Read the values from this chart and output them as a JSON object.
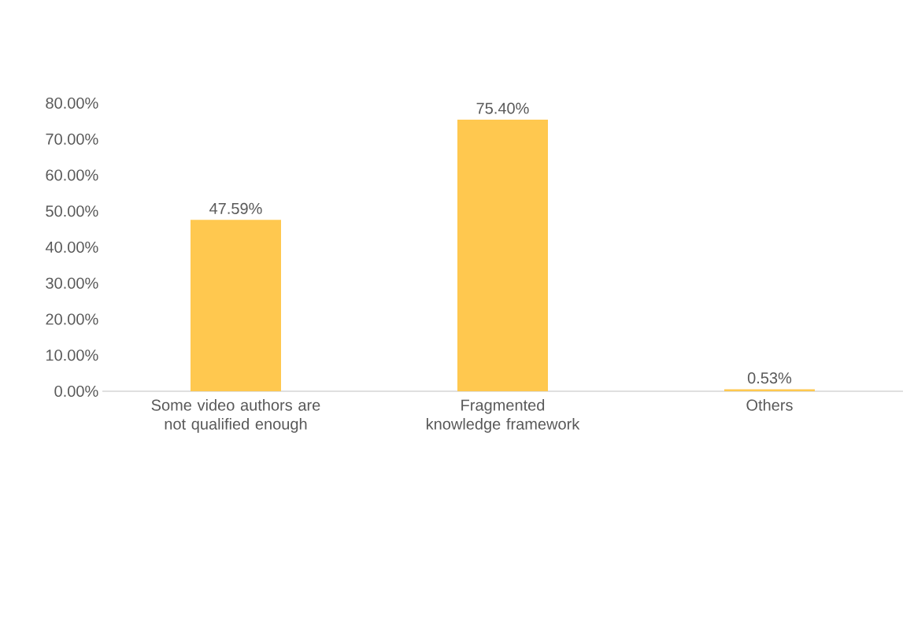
{
  "chart_data": {
    "type": "bar",
    "categories": [
      "Some video authors are not qualified enough",
      "Fragmented knowledge framework",
      "Others"
    ],
    "values": [
      47.59,
      75.4,
      0.53
    ],
    "value_labels": [
      "47.59%",
      "75.40%",
      "0.53%"
    ],
    "color": "#ffc84f",
    "ylim": [
      0,
      80
    ],
    "yticks": [
      {
        "value": 0,
        "label": "0.00%"
      },
      {
        "value": 10,
        "label": "10.00%"
      },
      {
        "value": 20,
        "label": "20.00%"
      },
      {
        "value": 30,
        "label": "30.00%"
      },
      {
        "value": 40,
        "label": "40.00%"
      },
      {
        "value": 50,
        "label": "50.00%"
      },
      {
        "value": 60,
        "label": "60.00%"
      },
      {
        "value": 70,
        "label": "70.00%"
      },
      {
        "value": 80,
        "label": "80.00%"
      }
    ]
  }
}
